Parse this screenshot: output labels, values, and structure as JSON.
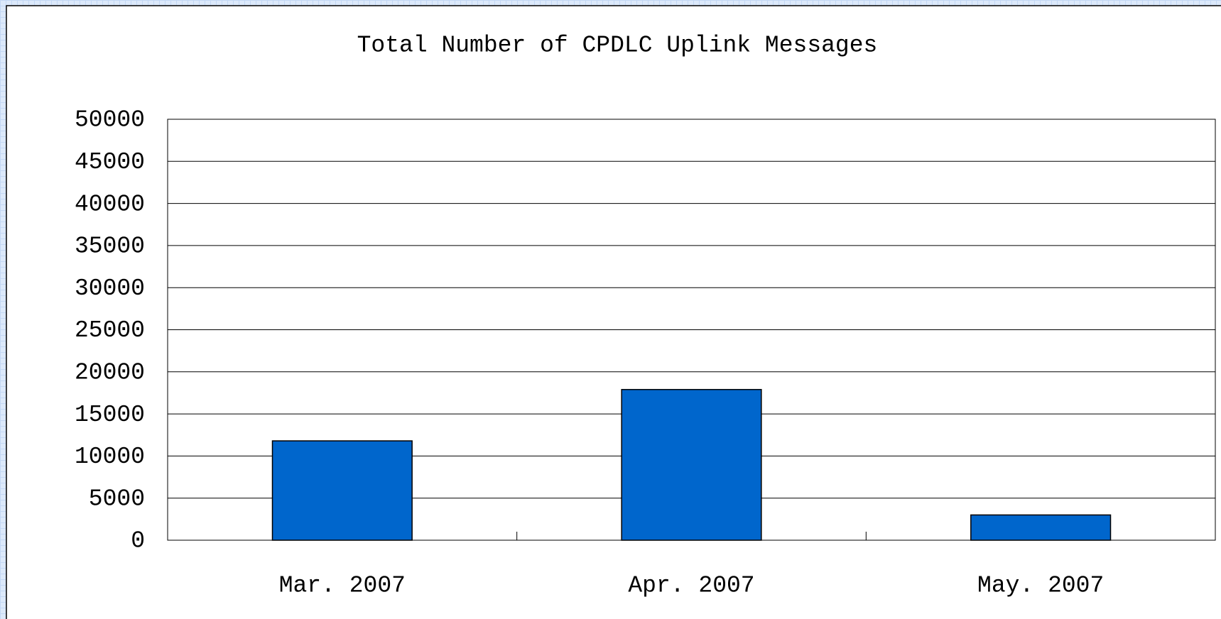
{
  "chart_data": {
    "type": "bar",
    "title": "Total Number of CPDLC Uplink Messages",
    "categories": [
      "Mar. 2007",
      "Apr. 2007",
      "May. 2007"
    ],
    "values": [
      11800,
      17900,
      3000
    ],
    "color": "#0066cc",
    "ylim": [
      0,
      50000
    ],
    "yticks": [
      0,
      5000,
      10000,
      15000,
      20000,
      25000,
      30000,
      35000,
      40000,
      45000,
      50000
    ],
    "grid": true
  }
}
